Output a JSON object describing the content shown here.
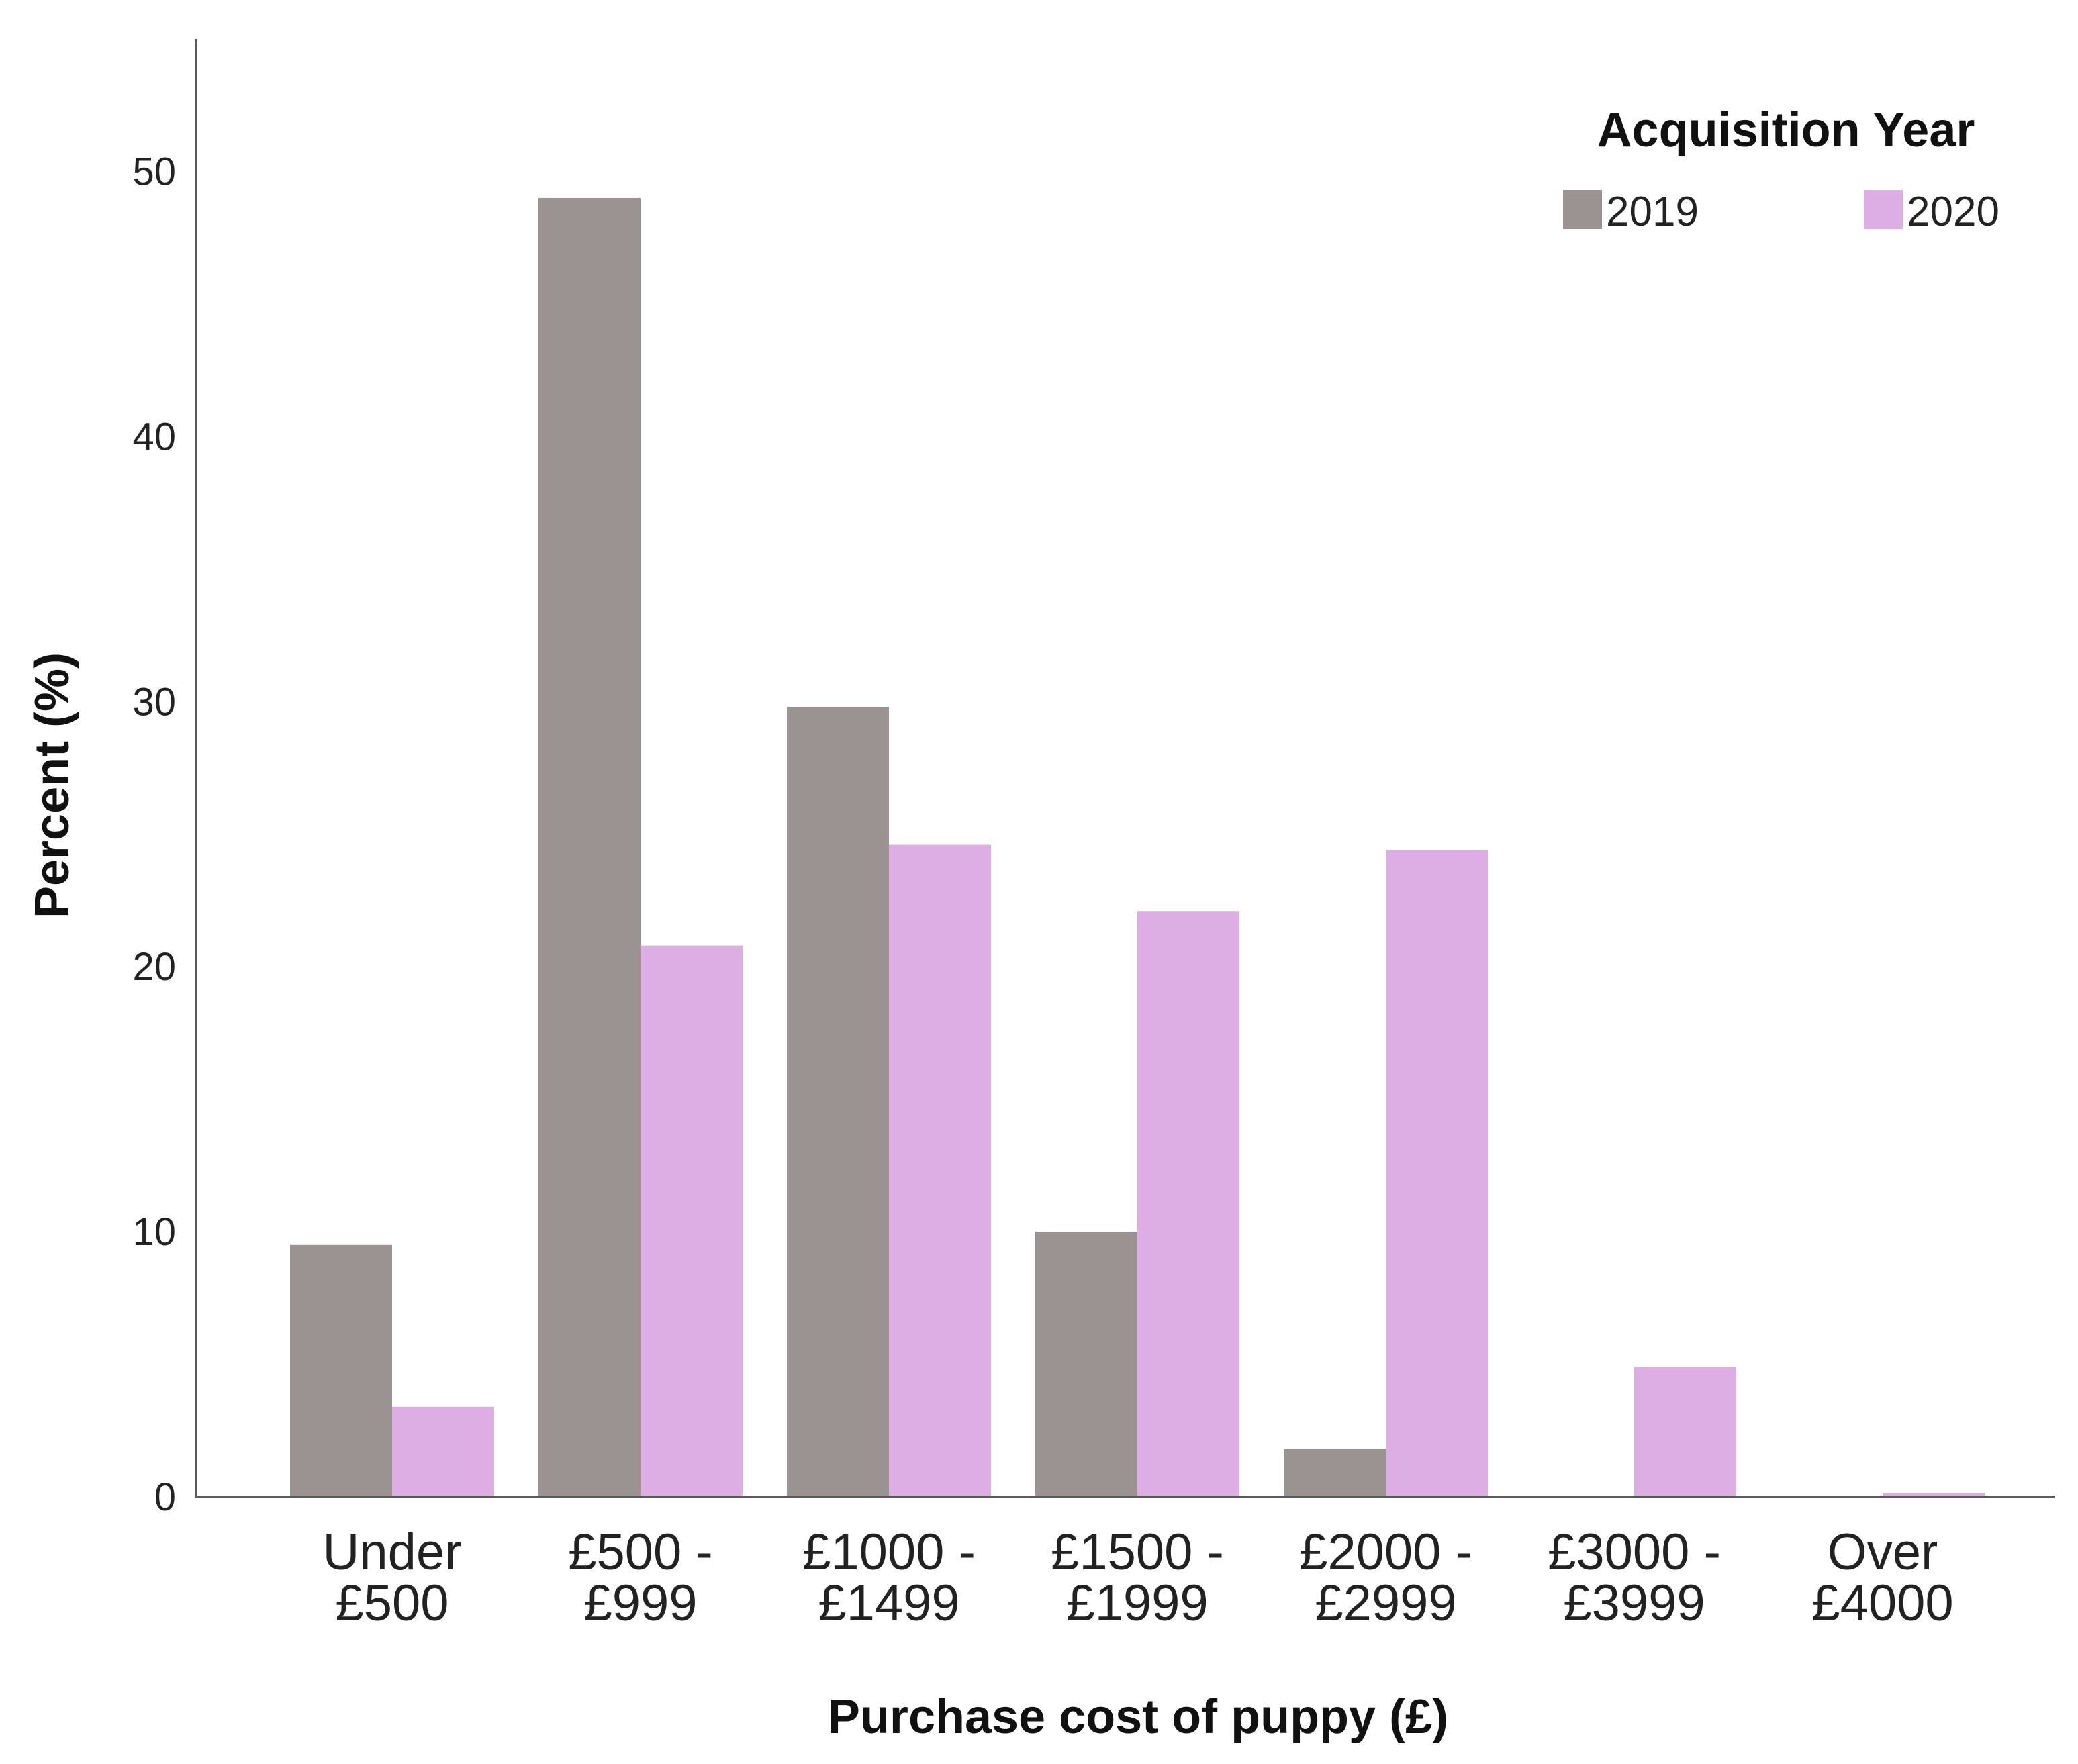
{
  "chart_data": {
    "type": "bar",
    "title": "",
    "xlabel": "Purchase cost of puppy (£)",
    "ylabel": "Percent (%)",
    "ylim": [
      0,
      55
    ],
    "yticks": [
      0,
      10,
      20,
      30,
      40,
      50
    ],
    "grid": false,
    "categories": [
      [
        "Under",
        "£500"
      ],
      [
        "£500 -",
        "£999"
      ],
      [
        "£1000 -",
        "£1499"
      ],
      [
        "£1500 -",
        "£1999"
      ],
      [
        "£2000 -",
        "£2999"
      ],
      [
        "£3000 -",
        "£3999"
      ],
      [
        "Over",
        "£4000"
      ]
    ],
    "legend": {
      "title": "Acquisition Year",
      "position": "top-right"
    },
    "series": [
      {
        "name": "2019",
        "color": "#9a9392",
        "values": [
          9.5,
          49.0,
          29.8,
          10.0,
          1.8,
          0.0,
          0.0
        ]
      },
      {
        "name": "2020",
        "color": "#dcaee3",
        "values": [
          3.4,
          20.8,
          24.6,
          22.1,
          24.4,
          4.9,
          0.15
        ]
      }
    ]
  }
}
